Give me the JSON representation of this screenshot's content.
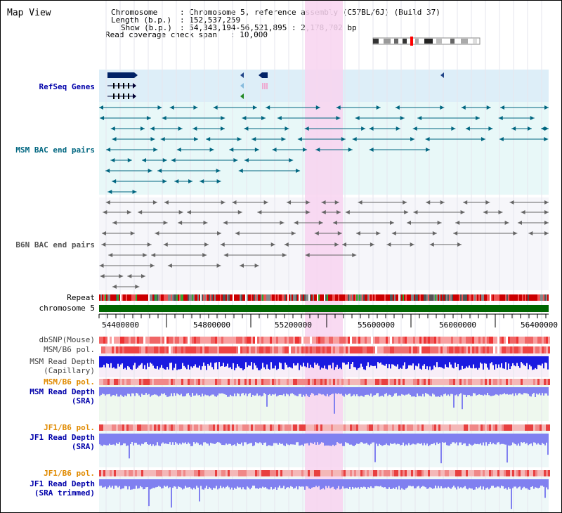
{
  "app": {
    "title": "Map View"
  },
  "header": {
    "chromosome_label": "Chromosome",
    "chromosome_value": ": Chromosome 5, reference assembly (C57BL/6J) (Build 37)",
    "length_label": "Length (b.p.)",
    "length_value": ": 152,537,259",
    "show_label": "Show (b.p.)",
    "show_value": ": 54,343,194-56,521,895 : 2,178,702 bp",
    "coverage_label": "Read coverage check span",
    "coverage_value": ": 10,000"
  },
  "tracks": {
    "refseq": "RefSeq Genes",
    "msm_bac": "MSM BAC end pairs",
    "b6n_bac": "B6N BAC end pairs",
    "repeat": "Repeat",
    "chromosome": "chromosome 5",
    "dbsnp": "dbSNP(Mouse)",
    "msm_b6_pol": "MSM/B6 pol.",
    "msm_depth_cap_1": "MSM Read Depth",
    "msm_depth_cap_2": "(Capillary)",
    "msm_b6_pol_2": "MSM/B6 pol.",
    "msm_depth_sra_1": "MSM Read Depth",
    "msm_depth_sra_2": "(SRA)",
    "jf1_b6_pol": "JF1/B6 pol.",
    "jf1_depth_sra_1": "JF1 Read Depth",
    "jf1_depth_sra_2": "(SRA)",
    "jf1_b6_pol_2": "JF1/B6 pol.",
    "jf1_depth_trim_1": "JF1 Read Depth",
    "jf1_depth_trim_2": "(SRA trimmed)"
  },
  "ruler": {
    "ticks": [
      "54400000",
      "54800000",
      "55200000",
      "55600000",
      "56000000",
      "56400000"
    ]
  },
  "colors": {
    "refseq_text": "#0000aa",
    "msm_text": "#006680",
    "b6n_text": "#555555",
    "orange_text": "#e08a00",
    "blue_text": "#0000aa",
    "highlight": "#f8d4f0",
    "chromosome_bar": "#006600",
    "refseq_bg": "#ddeef8",
    "msm_bg": "#e8f8f8",
    "depth_dark": "#1a1ae0",
    "depth_light": "#8080f0"
  }
}
